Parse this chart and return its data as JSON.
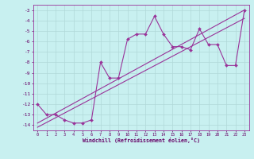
{
  "xlabel": "Windchill (Refroidissement éolien,°C)",
  "background_color": "#c8f0f0",
  "grid_color": "#b0d8d8",
  "line_color": "#993399",
  "xlim": [
    -0.5,
    23.5
  ],
  "ylim": [
    -14.5,
    -2.5
  ],
  "yticks": [
    -14,
    -13,
    -12,
    -11,
    -10,
    -9,
    -8,
    -7,
    -6,
    -5,
    -4,
    -3
  ],
  "xticks": [
    0,
    1,
    2,
    3,
    4,
    5,
    6,
    7,
    8,
    9,
    10,
    11,
    12,
    13,
    14,
    15,
    16,
    17,
    18,
    19,
    20,
    21,
    22,
    23
  ],
  "data_x": [
    0,
    1,
    2,
    3,
    4,
    5,
    6,
    7,
    8,
    9,
    10,
    11,
    12,
    13,
    14,
    15,
    16,
    17,
    18,
    19,
    20,
    21,
    22,
    23
  ],
  "data_y": [
    -12.0,
    -13.0,
    -13.0,
    -13.5,
    -13.8,
    -13.8,
    -13.5,
    -8.0,
    -9.5,
    -9.5,
    -5.8,
    -5.3,
    -5.3,
    -3.6,
    -5.3,
    -6.5,
    -6.5,
    -6.8,
    -4.8,
    -6.3,
    -6.3,
    -8.3,
    -8.3,
    -3.0
  ],
  "line1_x": [
    0,
    23
  ],
  "line1_y": [
    -13.8,
    -3.0
  ],
  "line2_x": [
    0,
    23
  ],
  "line2_y": [
    -14.2,
    -3.8
  ]
}
